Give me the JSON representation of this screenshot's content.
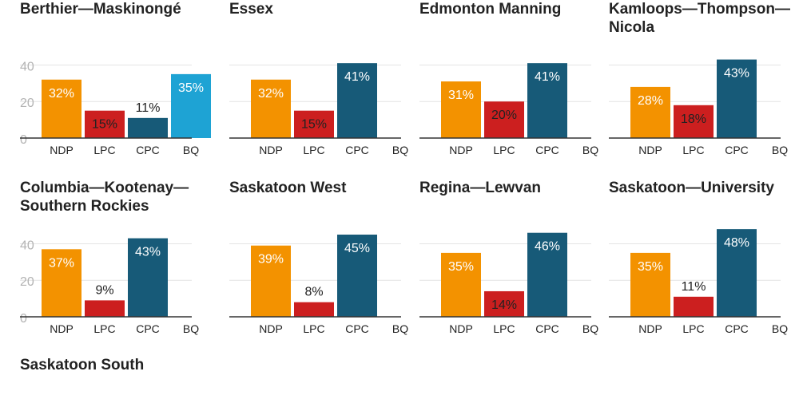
{
  "chart_data": [
    {
      "type": "bar",
      "title": "Berthier—Maskinongé",
      "categories": [
        "NDP",
        "LPC",
        "CPC",
        "BQ"
      ],
      "values": [
        32,
        15,
        11,
        35
      ],
      "value_labels": [
        "32%",
        "15%",
        "11%",
        "35%"
      ],
      "yticks": [
        "0",
        "20",
        "40"
      ],
      "show_y_axis_labels": true,
      "ylim": [
        0,
        45
      ],
      "grid": true
    },
    {
      "type": "bar",
      "title": "Essex",
      "categories": [
        "NDP",
        "LPC",
        "CPC",
        "BQ"
      ],
      "values": [
        32,
        15,
        41,
        null
      ],
      "value_labels": [
        "32%",
        "15%",
        "41%",
        ""
      ],
      "yticks": [
        "0",
        "20",
        "40"
      ],
      "show_y_axis_labels": false,
      "ylim": [
        0,
        45
      ],
      "grid": true
    },
    {
      "type": "bar",
      "title": "Edmonton Manning",
      "categories": [
        "NDP",
        "LPC",
        "CPC",
        "BQ"
      ],
      "values": [
        31,
        20,
        41,
        null
      ],
      "value_labels": [
        "31%",
        "20%",
        "41%",
        ""
      ],
      "yticks": [
        "0",
        "20",
        "40"
      ],
      "show_y_axis_labels": false,
      "ylim": [
        0,
        45
      ],
      "grid": true
    },
    {
      "type": "bar",
      "title": "Kamloops—Thompson—Nicola",
      "categories": [
        "NDP",
        "LPC",
        "CPC",
        "BQ"
      ],
      "values": [
        28,
        18,
        43,
        null
      ],
      "value_labels": [
        "28%",
        "18%",
        "43%",
        ""
      ],
      "yticks": [
        "0",
        "20",
        "40"
      ],
      "show_y_axis_labels": false,
      "ylim": [
        0,
        45
      ],
      "grid": true
    },
    {
      "type": "bar",
      "title": "Columbia—Kootenay—Southern Rockies",
      "categories": [
        "NDP",
        "LPC",
        "CPC",
        "BQ"
      ],
      "values": [
        37,
        9,
        43,
        null
      ],
      "value_labels": [
        "37%",
        "9%",
        "43%",
        ""
      ],
      "yticks": [
        "0",
        "20",
        "40"
      ],
      "show_y_axis_labels": true,
      "ylim": [
        0,
        45
      ],
      "grid": true
    },
    {
      "type": "bar",
      "title": "Saskatoon West",
      "categories": [
        "NDP",
        "LPC",
        "CPC",
        "BQ"
      ],
      "values": [
        39,
        8,
        45,
        null
      ],
      "value_labels": [
        "39%",
        "8%",
        "45%",
        ""
      ],
      "yticks": [
        "0",
        "20",
        "40"
      ],
      "show_y_axis_labels": false,
      "ylim": [
        0,
        45
      ],
      "grid": true
    },
    {
      "type": "bar",
      "title": "Regina—Lewvan",
      "categories": [
        "NDP",
        "LPC",
        "CPC",
        "BQ"
      ],
      "values": [
        35,
        14,
        46,
        null
      ],
      "value_labels": [
        "35%",
        "14%",
        "46%",
        ""
      ],
      "yticks": [
        "0",
        "20",
        "40"
      ],
      "show_y_axis_labels": false,
      "ylim": [
        0,
        45
      ],
      "grid": true
    },
    {
      "type": "bar",
      "title": "Saskatoon—University",
      "categories": [
        "NDP",
        "LPC",
        "CPC",
        "BQ"
      ],
      "values": [
        35,
        11,
        48,
        null
      ],
      "value_labels": [
        "35%",
        "11%",
        "48%",
        ""
      ],
      "yticks": [
        "0",
        "20",
        "40"
      ],
      "show_y_axis_labels": false,
      "ylim": [
        0,
        45
      ],
      "grid": true
    },
    {
      "type": "bar",
      "title": "Saskatoon South",
      "categories": [],
      "values": [],
      "value_labels": []
    }
  ],
  "party_colors": {
    "NDP": "#f39200",
    "LPC": "#cc1f1f",
    "CPC": "#175a78",
    "BQ": "#1ea3d4"
  },
  "label_colors": {
    "NDP": "#ffffff",
    "LPC": "#222222",
    "CPC": "#ffffff",
    "BQ": "#ffffff"
  }
}
